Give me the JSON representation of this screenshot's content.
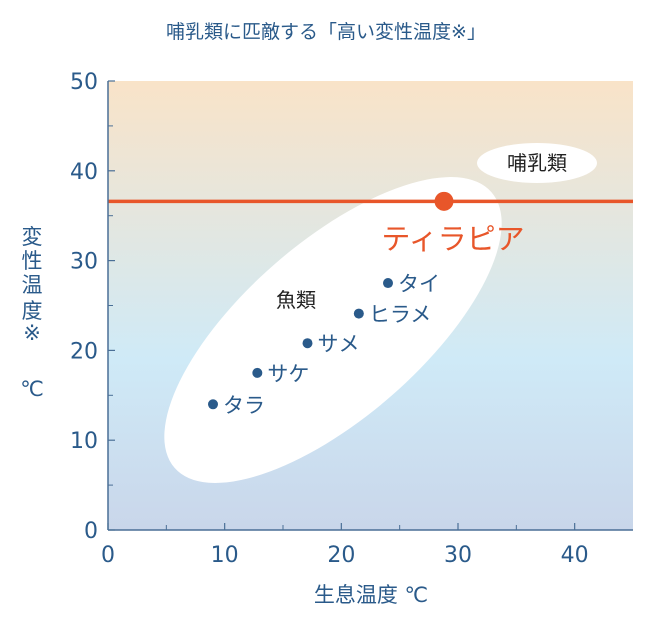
{
  "chart_data": {
    "type": "scatter",
    "title": "哺乳類に匹敵する「高い変性温度※」",
    "xlabel": "生息温度 ℃",
    "ylabel_lines": [
      "変",
      "性",
      "温",
      "度",
      "※",
      "",
      "℃"
    ],
    "xlim": [
      0,
      45
    ],
    "ylim": [
      0,
      50
    ],
    "x_ticks": [
      0,
      10,
      20,
      30,
      40
    ],
    "y_ticks": [
      0,
      10,
      20,
      30,
      40,
      50
    ],
    "grid": false,
    "points": [
      {
        "label": "タラ",
        "x": 9,
        "y": 14
      },
      {
        "label": "サケ",
        "x": 12.8,
        "y": 17.5
      },
      {
        "label": "サメ",
        "x": 17.1,
        "y": 20.8
      },
      {
        "label": "ヒラメ",
        "x": 21.5,
        "y": 24.1
      },
      {
        "label": "タイ",
        "x": 24,
        "y": 27.5
      }
    ],
    "highlight": {
      "label": "ティラピア",
      "x": 28.8,
      "y": 36.6,
      "color": "#e8562a"
    },
    "reference_line": {
      "y": 36.6,
      "color": "#e8562a"
    },
    "group_labels": [
      {
        "text": "魚類"
      },
      {
        "text": "哺乳類"
      }
    ],
    "colors": {
      "point": "#2a5a8a",
      "axis_text": "#2a5a8a",
      "bg_top": "#f9e3c8",
      "bg_mid": "#cfeaf7",
      "bg_bottom": "#c9d6ea"
    }
  }
}
